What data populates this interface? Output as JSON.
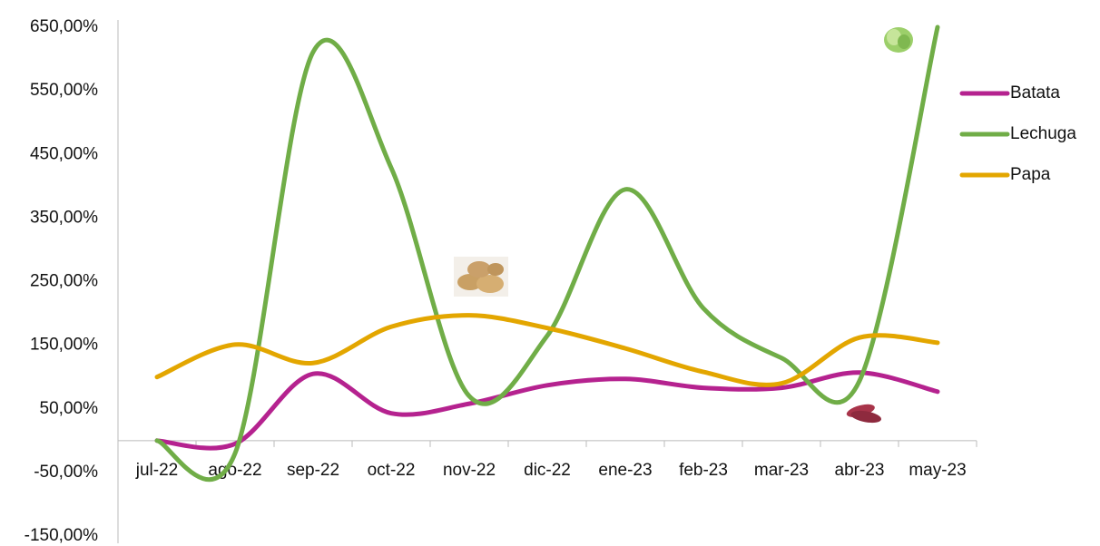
{
  "chart_data": {
    "type": "line",
    "smooth": true,
    "legend": "right",
    "categories": [
      "jul-22",
      "ago-22",
      "sep-22",
      "oct-22",
      "nov-22",
      "dic-22",
      "ene-23",
      "feb-23",
      "mar-23",
      "abr-23",
      "may-23"
    ],
    "series": [
      {
        "name": "Batata",
        "color": "#b5228f",
        "values": [
          0,
          -5,
          105,
          43,
          58,
          87,
          97,
          83,
          83,
          107,
          77
        ]
      },
      {
        "name": "Lechuga",
        "color": "#70ad47",
        "values": [
          0,
          -20,
          611,
          429,
          70,
          165,
          395,
          208,
          130,
          94,
          650
        ]
      },
      {
        "name": "Papa",
        "color": "#e3a600",
        "values": [
          100,
          151,
          122,
          179,
          197,
          177,
          145,
          108,
          90,
          162,
          154
        ]
      }
    ],
    "ylim": [
      -150,
      650
    ],
    "yticks": [
      {
        "value": -150,
        "label": "-150,00%"
      },
      {
        "value": -50,
        "label": "-50,00%"
      },
      {
        "value": 50,
        "label": "50,00%"
      },
      {
        "value": 150,
        "label": "150,00%"
      },
      {
        "value": 250,
        "label": "250,00%"
      },
      {
        "value": 350,
        "label": "350,00%"
      },
      {
        "value": 450,
        "label": "450,00%"
      },
      {
        "value": 550,
        "label": "550,00%"
      },
      {
        "value": 650,
        "label": "650,00%"
      }
    ]
  }
}
